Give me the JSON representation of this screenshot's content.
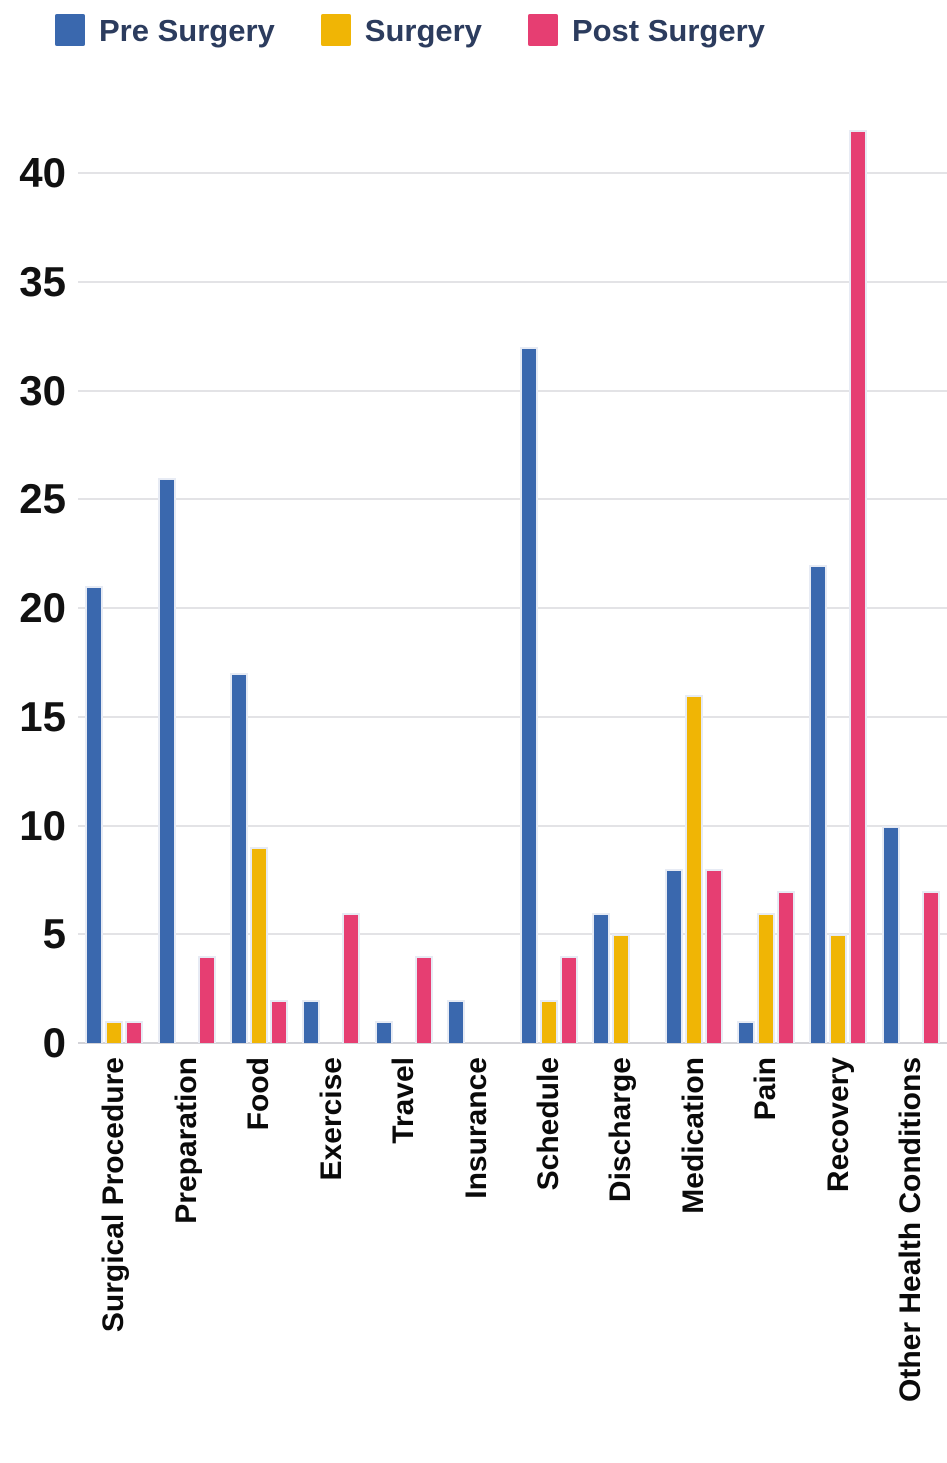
{
  "chart_data": {
    "type": "bar",
    "title": "",
    "xlabel": "",
    "ylabel": "",
    "categories": [
      "Surgical Procedure",
      "Preparation",
      "Food",
      "Exercise",
      "Travel",
      "Insurance",
      "Schedule",
      "Discharge",
      "Medication",
      "Pain",
      "Recovery",
      "Other Health Conditions"
    ],
    "series": [
      {
        "name": "Pre Surgery",
        "color": "#3A68AE",
        "values": [
          21,
          26,
          17,
          2,
          1,
          2,
          32,
          6,
          8,
          1,
          22,
          10
        ]
      },
      {
        "name": "Surgery",
        "color": "#F0B505",
        "values": [
          1,
          0,
          9,
          0,
          0,
          0,
          2,
          5,
          16,
          6,
          5,
          0
        ]
      },
      {
        "name": "Post Surgery",
        "color": "#E63E72",
        "values": [
          1,
          4,
          2,
          6,
          4,
          0,
          4,
          0,
          8,
          7,
          42,
          7
        ]
      }
    ],
    "ylim": [
      0,
      43
    ],
    "yticks": [
      0,
      5,
      10,
      15,
      20,
      25,
      30,
      35,
      40
    ],
    "grid": true,
    "legend_position": "top",
    "colors": {
      "legend_text": "#2C3C5E",
      "axis_text": "#111111",
      "gridline": "#e3e3e6",
      "baseline": "#d3d3d8",
      "bar_stroke": "#e7ebf4",
      "background": "#ffffff"
    }
  }
}
